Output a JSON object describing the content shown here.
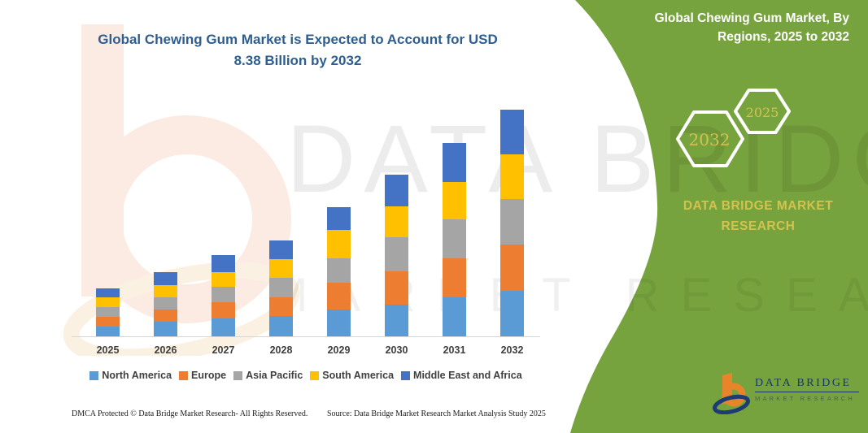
{
  "colors": {
    "panel_green": "#77A33E",
    "title_blue": "#2E5E8F",
    "gold_accent": "#D4C24F",
    "axis_text": "#3F3F3F",
    "logo_navy": "#173A63",
    "logo_orange": "#E8852B"
  },
  "chart": {
    "title_line1": "Global Chewing Gum Market is Expected to Account for USD",
    "title_line2": "8.38 Billion by 2032"
  },
  "chart_data": {
    "type": "bar",
    "stacked": true,
    "title": "Global Chewing Gum Market is Expected to Account for USD 8.38 Billion by 2032",
    "unit": "USD Billion",
    "xlabel": "",
    "ylabel": "",
    "ylim": [
      0,
      8.5
    ],
    "grid": false,
    "legend_position": "bottom",
    "categories": [
      "2025",
      "2026",
      "2027",
      "2028",
      "2029",
      "2030",
      "2031",
      "2032"
    ],
    "series": [
      {
        "name": "North America",
        "color": "#5B9BD5",
        "values": [
          0.36,
          0.54,
          0.66,
          0.75,
          0.99,
          1.17,
          1.44,
          1.68
        ]
      },
      {
        "name": "Europe",
        "color": "#ED7D31",
        "values": [
          0.36,
          0.45,
          0.6,
          0.69,
          1.0,
          1.23,
          1.44,
          1.71
        ]
      },
      {
        "name": "Asia Pacific",
        "color": "#A5A5A5",
        "values": [
          0.36,
          0.45,
          0.57,
          0.72,
          0.9,
          1.26,
          1.44,
          1.68
        ]
      },
      {
        "name": "South America",
        "color": "#FFC000",
        "values": [
          0.36,
          0.45,
          0.54,
          0.69,
          1.05,
          1.14,
          1.38,
          1.65
        ]
      },
      {
        "name": "Middle East and Africa",
        "color": "#4472C4",
        "values": [
          0.33,
          0.48,
          0.63,
          0.69,
          0.83,
          1.17,
          1.44,
          1.66
        ]
      }
    ],
    "totals": [
      1.77,
      2.37,
      3.0,
      3.54,
      4.77,
      5.97,
      7.14,
      8.38
    ]
  },
  "side_panel": {
    "title_line1": "Global Chewing Gum Market, By",
    "title_line2": "Regions, 2025 to 2032",
    "hex_large_label": "2032",
    "hex_small_label": "2025",
    "brand_line1": "DATA BRIDGE MARKET",
    "brand_line2": "RESEARCH"
  },
  "watermark": {
    "line1": "DATA BRIDGE",
    "line2": "MARKET RESEARCH"
  },
  "logo": {
    "name_line": "DATA BRIDGE",
    "sub_line": "MARKET RESEARCH"
  },
  "footer": {
    "dmca": "DMCA Protected © Data Bridge Market Research-  All Rights Reserved.",
    "source": "Source: Data Bridge Market Research  Market Analysis Study 2025"
  }
}
